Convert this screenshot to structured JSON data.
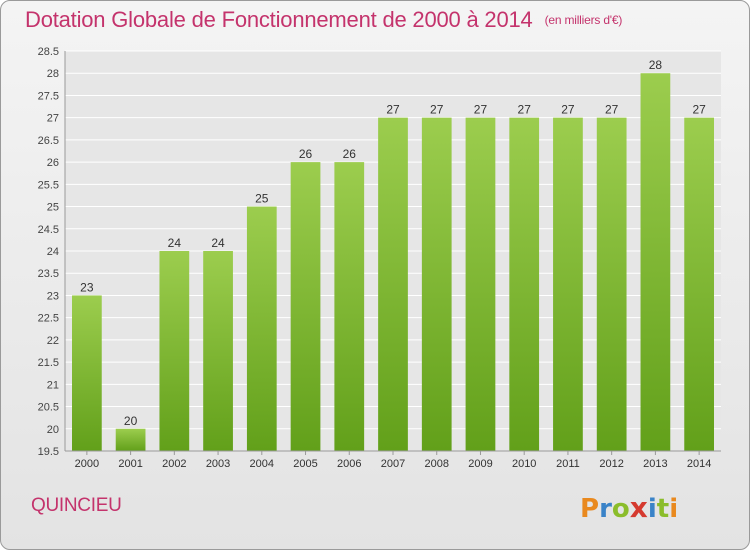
{
  "header": {
    "title": "Dotation Globale de Fonctionnement de 2000 à 2014",
    "unit": "(en milliers d'€)"
  },
  "footer": {
    "commune": "QUINCIEU",
    "logo_text": "Proxiti"
  },
  "colors": {
    "accent": "#c4336c",
    "bar_top": "#9ccd4e",
    "bar_bottom": "#62a01a",
    "grid": "#ffffff"
  },
  "chart_data": {
    "type": "bar",
    "categories": [
      "2000",
      "2001",
      "2002",
      "2003",
      "2004",
      "2005",
      "2006",
      "2007",
      "2008",
      "2009",
      "2010",
      "2011",
      "2012",
      "2013",
      "2014"
    ],
    "values": [
      23,
      20,
      24,
      24,
      25,
      26,
      26,
      27,
      27,
      27,
      27,
      27,
      27,
      28,
      27
    ],
    "title": "Dotation Globale de Fonctionnement de 2000 à 2014",
    "subtitle": "(en milliers d'€)",
    "ylim": [
      19.5,
      28.5
    ],
    "ytick_step": 0.5,
    "grid": true,
    "legend": "none",
    "data_labels": true
  }
}
